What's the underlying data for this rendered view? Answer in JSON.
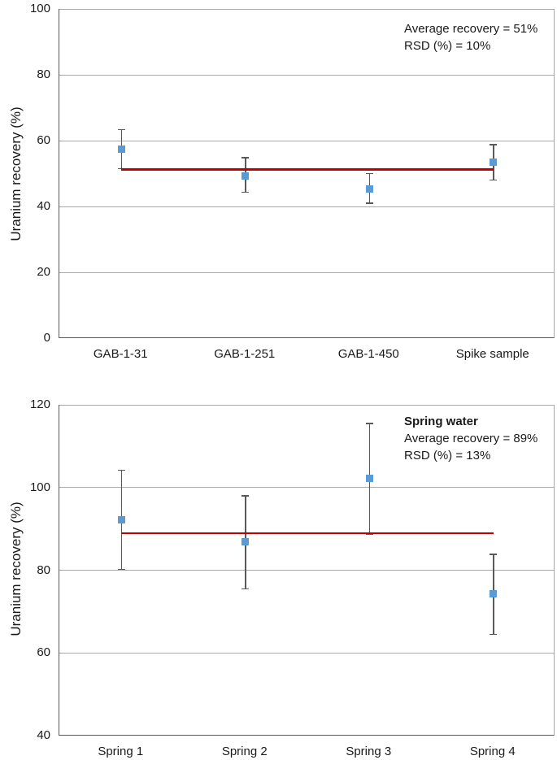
{
  "page": {
    "background": "#ffffff"
  },
  "colors": {
    "marker_blue": "#5b9bd5",
    "error_bar": "#595959",
    "mean_line_red": "#c00000",
    "gridline": "#a9a9a9",
    "axis_line": "#595959",
    "text": "#1a1a1a"
  },
  "chart_data": [
    {
      "type": "scatter",
      "name": "gab-samples-recovery",
      "ylabel": "Uranium recovery (%)",
      "xlabel": "",
      "ylim": [
        0,
        100
      ],
      "yticks": [
        0,
        20,
        40,
        60,
        80,
        100
      ],
      "grid": true,
      "legend": "none",
      "categories": [
        "GAB-1-31",
        "GAB-1-251",
        "GAB-1-450",
        "Spike sample"
      ],
      "series": [
        {
          "name": "Uranium recovery",
          "values": [
            57.3,
            49.3,
            45.3,
            53.5
          ],
          "err_low": [
            51.5,
            44.3,
            41.0,
            48.0
          ],
          "err_high": [
            63.3,
            54.8,
            50.0,
            58.8
          ]
        }
      ],
      "mean_line_value": 51.3,
      "annotation": {
        "title": "",
        "lines": [
          "Average recovery = 51%",
          "RSD (%) = 10%"
        ]
      }
    },
    {
      "type": "scatter",
      "name": "spring-water-recovery",
      "ylabel": "Uranium recovery (%)",
      "xlabel": "",
      "ylim": [
        40,
        120
      ],
      "yticks": [
        40,
        60,
        80,
        100,
        120
      ],
      "grid": true,
      "legend": "none",
      "categories": [
        "Spring 1",
        "Spring 2",
        "Spring 3",
        "Spring 4"
      ],
      "series": [
        {
          "name": "Uranium recovery",
          "values": [
            92.2,
            86.8,
            102.2,
            74.3
          ],
          "err_low": [
            80.2,
            75.5,
            88.7,
            64.5
          ],
          "err_high": [
            104.2,
            98.0,
            115.5,
            83.8
          ]
        }
      ],
      "mean_line_value": 88.9,
      "annotation": {
        "title": "Spring water",
        "lines": [
          "Average recovery = 89%",
          "RSD (%) = 13%"
        ]
      }
    }
  ]
}
